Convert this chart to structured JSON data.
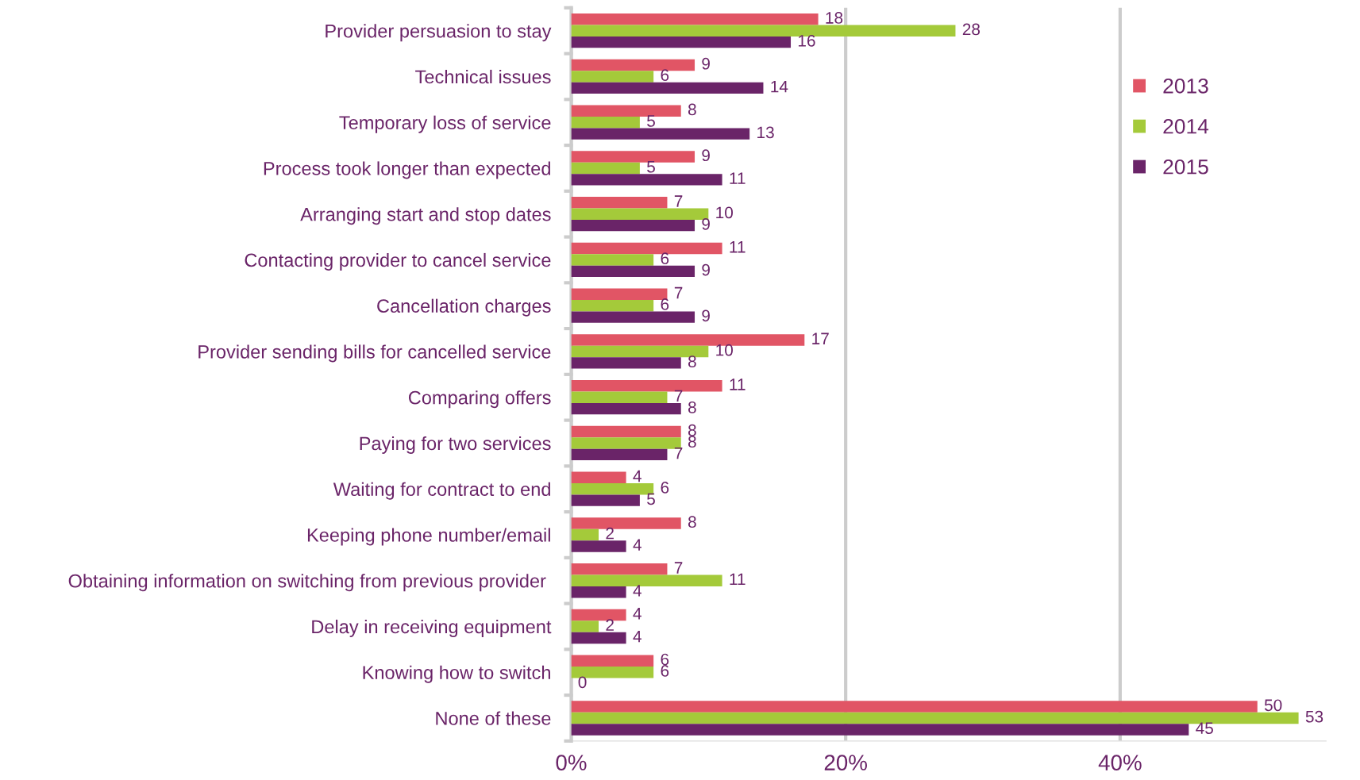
{
  "chart_data": {
    "type": "bar",
    "orientation": "horizontal",
    "categories": [
      "Provider persuasion to stay",
      "Technical issues",
      "Temporary loss of service",
      "Process took longer than expected",
      "Arranging start and stop dates",
      "Contacting provider to cancel service",
      "Cancellation charges",
      "Provider sending bills for cancelled service",
      "Comparing offers",
      "Paying for two services",
      "Waiting for contract to end",
      "Keeping phone number/email",
      "Obtaining information on switching from previous provider ",
      "Delay in receiving equipment",
      "Knowing how to switch",
      "None of these"
    ],
    "series": [
      {
        "name": "2013",
        "color": "#e15565",
        "values": [
          18,
          9,
          8,
          9,
          7,
          11,
          7,
          17,
          11,
          8,
          4,
          8,
          7,
          4,
          6,
          50
        ]
      },
      {
        "name": "2014",
        "color": "#a4ca3a",
        "values": [
          28,
          6,
          5,
          5,
          10,
          6,
          6,
          10,
          7,
          8,
          6,
          2,
          11,
          2,
          6,
          53
        ]
      },
      {
        "name": "2015",
        "color": "#6a2468",
        "values": [
          16,
          14,
          13,
          11,
          9,
          9,
          9,
          8,
          8,
          7,
          5,
          4,
          4,
          4,
          0,
          45
        ]
      }
    ],
    "xlim": [
      0,
      55
    ],
    "xticks": [
      {
        "value": 0,
        "label": "0%"
      },
      {
        "value": 20,
        "label": "20%"
      },
      {
        "value": 40,
        "label": "40%"
      }
    ],
    "grid": "x",
    "legend": "top right",
    "data_labels": true
  }
}
